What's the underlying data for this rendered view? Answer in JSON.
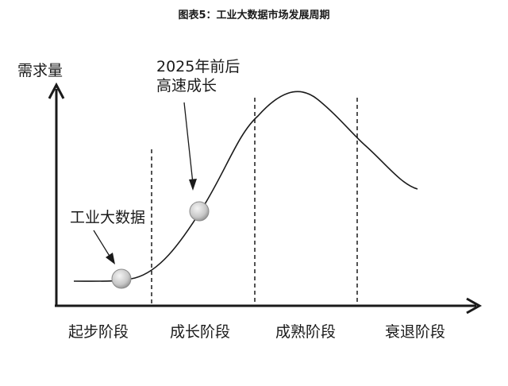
{
  "title": "图表5：工业大数据市场发展周期",
  "y_axis_label": "需求量",
  "annotations": [
    {
      "lines": [
        "2025年前后",
        "高速成长"
      ]
    },
    {
      "lines": [
        "工业大数据"
      ]
    }
  ],
  "stages": [
    "起步阶段",
    "成长阶段",
    "成熟阶段",
    "衰退阶段"
  ],
  "colors": {
    "line": "#1a1a1a",
    "marker_light": "#f2f2f2",
    "marker_dark": "#a0a0a0"
  }
}
